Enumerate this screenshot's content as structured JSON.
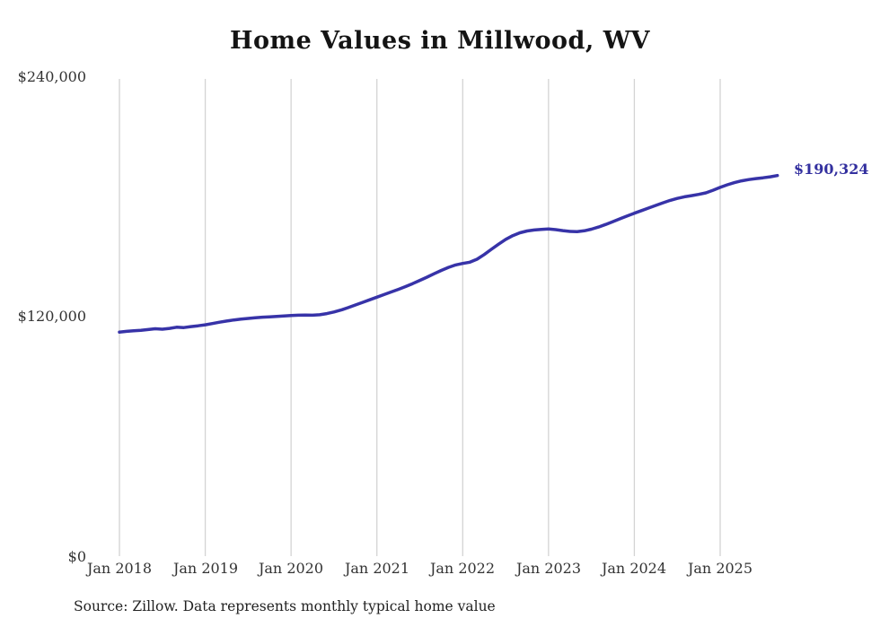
{
  "title": "Home Values in Millwood, WV",
  "end_label": "$190,324",
  "source_note": "Source: Zillow. Data represents monthly typical home value",
  "colors": {
    "line": "#3733a8",
    "accent": "#33309f",
    "grid": "#d3d3d3",
    "axis_text": "#333333"
  },
  "chart_data": {
    "type": "line",
    "title": "Home Values in Millwood, WV",
    "x_start": "2018-01",
    "x_end": "2025-09",
    "x_tick_labels": [
      "Jan 2018",
      "Jan 2019",
      "Jan 2020",
      "Jan 2021",
      "Jan 2022",
      "Jan 2023",
      "Jan 2024",
      "Jan 2025"
    ],
    "y_tick_labels": [
      "$0",
      "$120,000",
      "$240,000"
    ],
    "ylim": [
      0,
      240000
    ],
    "grid": "vertical-only",
    "legend": "none",
    "final_value": 190324,
    "series": [
      {
        "name": "Monthly typical home value",
        "values": [
          112000,
          112400,
          112700,
          112900,
          113300,
          113700,
          113500,
          113900,
          114500,
          114300,
          114800,
          115200,
          115700,
          116300,
          117000,
          117600,
          118100,
          118500,
          118900,
          119200,
          119500,
          119700,
          119900,
          120100,
          120300,
          120500,
          120600,
          120500,
          120700,
          121300,
          122100,
          123100,
          124300,
          125600,
          126900,
          128200,
          129500,
          130800,
          132100,
          133400,
          134800,
          136300,
          137900,
          139500,
          141200,
          142900,
          144400,
          145600,
          146400,
          147000,
          148500,
          150800,
          153400,
          156000,
          158400,
          160300,
          161700,
          162600,
          163100,
          163400,
          163600,
          163300,
          162800,
          162400,
          162300,
          162700,
          163500,
          164600,
          165900,
          167300,
          168700,
          170100,
          171500,
          172800,
          174100,
          175400,
          176700,
          177900,
          178900,
          179700,
          180300,
          180900,
          181700,
          183000,
          184400,
          185700,
          186800,
          187700,
          188300,
          188800,
          189200,
          189700,
          190324
        ]
      }
    ]
  }
}
